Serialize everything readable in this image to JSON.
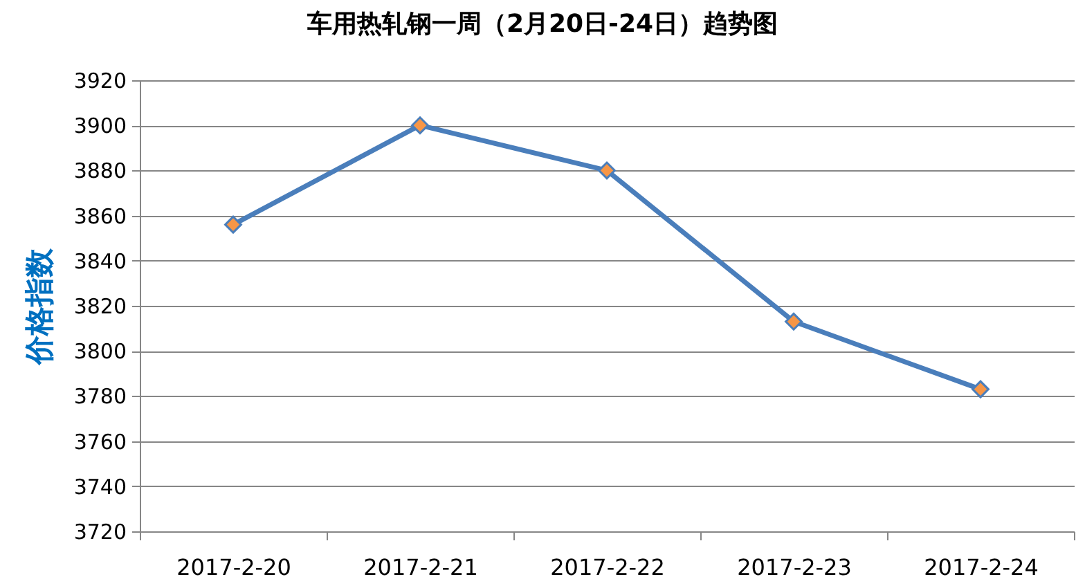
{
  "chart_data": {
    "type": "line",
    "title": "车用热轧钢一周（2月20日-24日）趋势图",
    "ylabel": "价格指数",
    "categories": [
      "2017-2-20",
      "2017-2-21",
      "2017-2-22",
      "2017-2-23",
      "2017-2-24"
    ],
    "series": [
      {
        "color": "#4a7ebb",
        "colors": [
          "#f79646",
          "#f79646",
          "#f79646",
          "#f79646",
          "#f79646"
        ],
        "values": [
          3856,
          3900,
          3880,
          3813,
          3783
        ]
      }
    ],
    "ylim": [
      3720,
      3920
    ],
    "yticks": [
      3720,
      3740,
      3760,
      3780,
      3800,
      3820,
      3840,
      3860,
      3880,
      3900,
      3920
    ],
    "grid": "y",
    "marker": "diamond",
    "line_style": "solid"
  }
}
